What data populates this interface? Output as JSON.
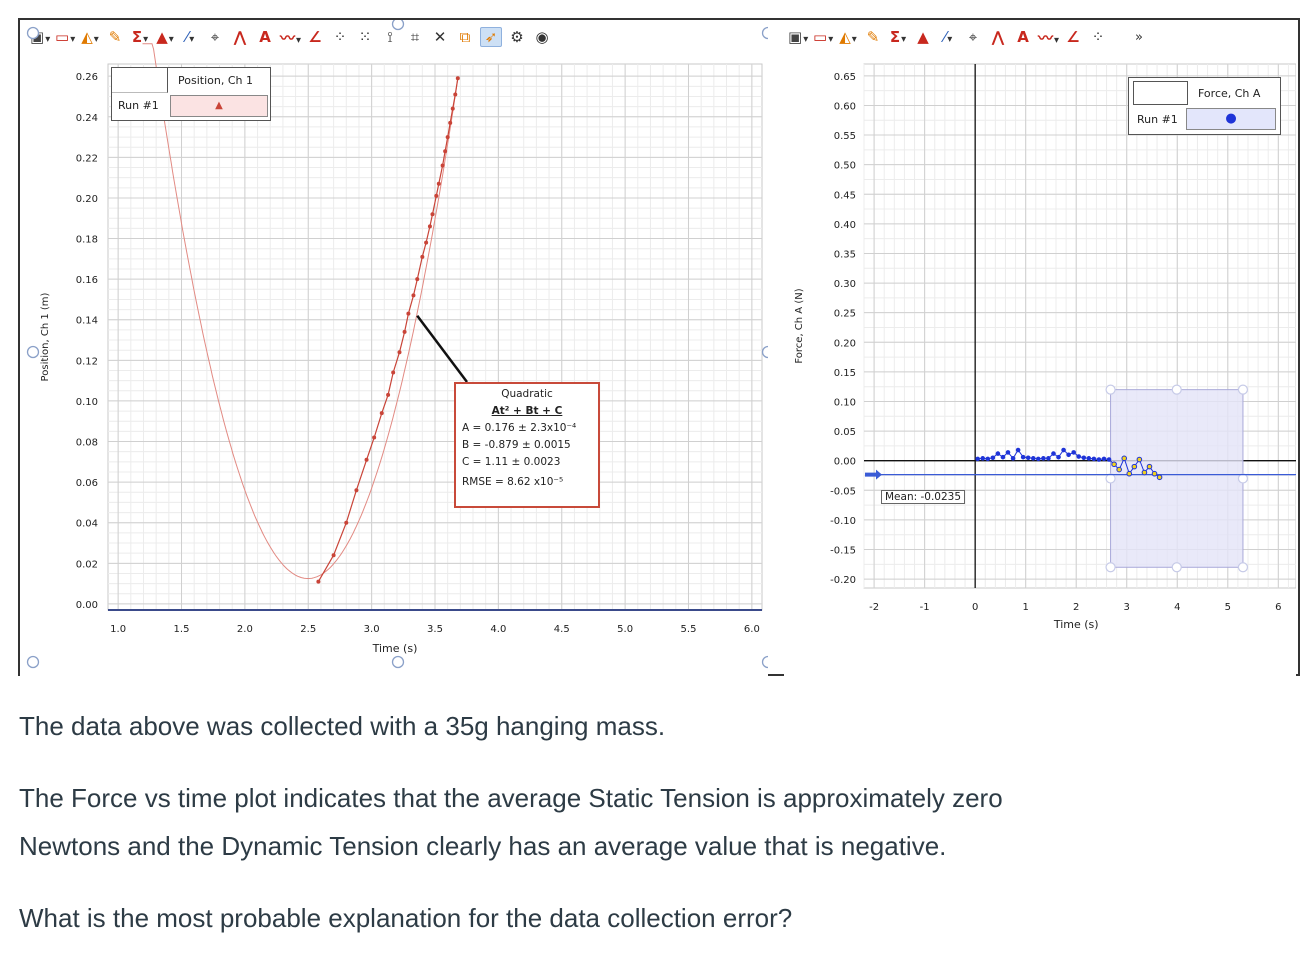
{
  "toolbar_left": {
    "icons": [
      "graph-options-icon",
      "view-icon",
      "analyze-icon",
      "fit-icon",
      "stats-icon",
      "integral-icon",
      "draw-icon",
      "zoom-icon",
      "tangent-icon",
      "annotate-icon",
      "text-icon",
      "interpolate-icon",
      "slope-icon",
      "scatter-icon",
      "scatter2-icon",
      "pin-icon",
      "crop-icon",
      "delete-icon",
      "copy-icon",
      "select-icon",
      "settings-icon",
      "eye-icon"
    ]
  },
  "toolbar_right": {
    "overflow": "»"
  },
  "position_legend": {
    "header": "Position, Ch 1",
    "run": "Run #1",
    "marker": "▲"
  },
  "force_legend": {
    "header": "Force, Ch A",
    "run": "Run #1",
    "marker": "●"
  },
  "fit_box": {
    "title": "Quadratic",
    "equation": "At² + Bt + C",
    "a_line": "A = 0.176  ± 2.3x10⁻⁴",
    "b_line": "B = -0.879 ± 0.0015",
    "c_line": "C = 1.11   ± 0.0023",
    "rmse_line": "RMSE = 8.62 x10⁻⁵"
  },
  "mean_label": "Mean: -0.0235",
  "colors": {
    "position_series": "#c94438",
    "force_series": "#1f34d8",
    "selection": "#e3e3f7",
    "mean_line": "#3a5bd6",
    "accent_fit": "#c84a3a"
  },
  "chart_data": [
    {
      "type": "scatter",
      "title": "",
      "xlabel": "Time (s)",
      "ylabel": "Position, Ch 1 (m)",
      "xlim": [
        0.92,
        6.08
      ],
      "ylim": [
        -0.003,
        0.266
      ],
      "x_ticks": [
        "1.0",
        "1.5",
        "2.0",
        "2.5",
        "3.0",
        "3.5",
        "4.0",
        "4.5",
        "5.0",
        "5.5",
        "6.0"
      ],
      "y_ticks": [
        "0.00",
        "0.02",
        "0.04",
        "0.06",
        "0.08",
        "0.10",
        "0.12",
        "0.14",
        "0.16",
        "0.18",
        "0.20",
        "0.22",
        "0.24",
        "0.26"
      ],
      "grid": true,
      "legend": "top-left",
      "series": [
        {
          "name": "Position, Ch 1",
          "x": [
            2.58,
            2.7,
            2.8,
            2.88,
            2.96,
            3.02,
            3.08,
            3.13,
            3.17,
            3.22,
            3.26,
            3.29,
            3.33,
            3.36,
            3.4,
            3.43,
            3.46,
            3.48,
            3.51,
            3.53,
            3.56,
            3.58,
            3.6,
            3.62,
            3.64,
            3.66,
            3.68
          ],
          "y": [
            0.011,
            0.024,
            0.04,
            0.056,
            0.071,
            0.082,
            0.094,
            0.103,
            0.114,
            0.124,
            0.134,
            0.143,
            0.152,
            0.16,
            0.171,
            0.178,
            0.186,
            0.192,
            0.201,
            0.207,
            0.216,
            0.223,
            0.23,
            0.237,
            0.244,
            0.251,
            0.259
          ]
        }
      ],
      "fit": {
        "type": "quadratic",
        "A": 0.176,
        "B": -0.879,
        "C": 1.11,
        "x_range": [
          1.18,
          3.68
        ]
      }
    },
    {
      "type": "scatter",
      "title": "",
      "xlabel": "Time (s)",
      "ylabel": "Force, Ch A (N)",
      "xlim": [
        -2.2,
        6.35
      ],
      "ylim": [
        -0.215,
        0.67
      ],
      "x_ticks": [
        "-2",
        "-1",
        "0",
        "1",
        "2",
        "3",
        "4",
        "5",
        "6"
      ],
      "y_ticks": [
        "0.65",
        "0.60",
        "0.55",
        "0.50",
        "0.45",
        "0.40",
        "0.35",
        "0.30",
        "0.25",
        "0.20",
        "0.15",
        "0.10",
        "0.05",
        "0.00",
        "-0.05",
        "-0.10",
        "-0.15",
        "-0.20"
      ],
      "grid": true,
      "legend": "top-right",
      "mean": -0.0235,
      "selection": {
        "x": [
          2.68,
          5.3
        ],
        "y": [
          -0.18,
          0.12
        ]
      },
      "series": [
        {
          "name": "Force, Ch A",
          "x": [
            0.05,
            0.15,
            0.25,
            0.35,
            0.45,
            0.55,
            0.65,
            0.75,
            0.85,
            0.95,
            1.05,
            1.15,
            1.25,
            1.35,
            1.45,
            1.55,
            1.65,
            1.75,
            1.85,
            1.95,
            2.05,
            2.15,
            2.25,
            2.35,
            2.45,
            2.55,
            2.65,
            2.75,
            2.85,
            2.95,
            3.05,
            3.15,
            3.25,
            3.35,
            3.45,
            3.55,
            3.65
          ],
          "y": [
            0.003,
            0.004,
            0.003,
            0.005,
            0.012,
            0.006,
            0.014,
            0.004,
            0.018,
            0.006,
            0.005,
            0.004,
            0.003,
            0.004,
            0.004,
            0.012,
            0.006,
            0.018,
            0.01,
            0.014,
            0.007,
            0.005,
            0.004,
            0.003,
            0.002,
            0.003,
            0.002,
            -0.006,
            -0.015,
            0.004,
            -0.022,
            -0.01,
            0.002,
            -0.02,
            -0.01,
            -0.022,
            -0.028
          ]
        }
      ]
    }
  ],
  "question": {
    "line1": "The data above was collected with a 35g hanging mass.",
    "line2": "The Force vs time plot indicates that the average Static Tension is approximately zero",
    "line3": "Newtons and the Dynamic Tension clearly has an average value that is negative.",
    "line4": "What is the most probable explanation for the data collection error?"
  }
}
